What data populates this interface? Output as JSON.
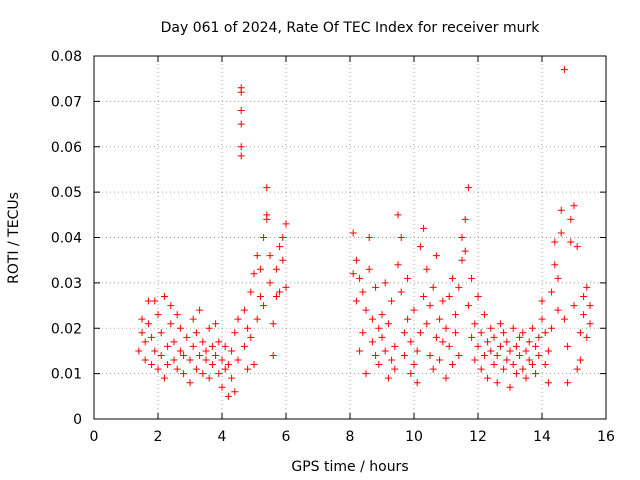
{
  "chart_data": {
    "type": "scatter",
    "title": "Day 061 of 2024, Rate Of TEC Index for receiver murk",
    "xlabel": "GPS time / hours",
    "ylabel": "ROTI / TECUs",
    "xlim": [
      0,
      16
    ],
    "ylim": [
      0,
      0.08
    ],
    "xticks": [
      0,
      2,
      4,
      6,
      8,
      10,
      12,
      14,
      16
    ],
    "yticks": [
      0,
      0.01,
      0.02,
      0.03,
      0.04,
      0.05,
      0.06,
      0.07,
      0.08
    ],
    "xtick_labels": [
      "0",
      "2",
      "4",
      "6",
      "8",
      "10",
      "12",
      "14",
      "16"
    ],
    "ytick_labels": [
      "0",
      "0.01",
      "0.02",
      "0.03",
      "0.04",
      "0.05",
      "0.06",
      "0.07",
      "0.08"
    ],
    "grid": true,
    "marker": "plus",
    "series_color": "#ff0000",
    "series": [
      {
        "name": "ROTI",
        "points": [
          [
            1.4,
            0.015
          ],
          [
            1.5,
            0.019
          ],
          [
            1.5,
            0.022
          ],
          [
            1.6,
            0.013
          ],
          [
            1.6,
            0.017
          ],
          [
            1.7,
            0.026
          ],
          [
            1.7,
            0.021
          ],
          [
            1.8,
            0.012
          ],
          [
            1.8,
            0.018
          ],
          [
            1.9,
            0.026
          ],
          [
            1.9,
            0.015
          ],
          [
            2.0,
            0.011
          ],
          [
            2.0,
            0.023
          ],
          [
            2.1,
            0.014
          ],
          [
            2.1,
            0.019
          ],
          [
            2.2,
            0.009
          ],
          [
            2.2,
            0.027
          ],
          [
            2.3,
            0.016
          ],
          [
            2.3,
            0.012
          ],
          [
            2.4,
            0.021
          ],
          [
            2.4,
            0.025
          ],
          [
            2.5,
            0.013
          ],
          [
            2.5,
            0.017
          ],
          [
            2.6,
            0.011
          ],
          [
            2.6,
            0.023
          ],
          [
            2.7,
            0.015
          ],
          [
            2.7,
            0.02
          ],
          [
            2.8,
            0.014
          ],
          [
            2.8,
            0.01
          ],
          [
            2.9,
            0.018
          ],
          [
            3.0,
            0.008
          ],
          [
            3.0,
            0.013
          ],
          [
            3.1,
            0.022
          ],
          [
            3.1,
            0.016
          ],
          [
            3.2,
            0.011
          ],
          [
            3.2,
            0.019
          ],
          [
            3.3,
            0.014
          ],
          [
            3.3,
            0.024
          ],
          [
            3.4,
            0.01
          ],
          [
            3.4,
            0.017
          ],
          [
            3.5,
            0.013
          ],
          [
            3.5,
            0.015
          ],
          [
            3.6,
            0.009
          ],
          [
            3.6,
            0.02
          ],
          [
            3.7,
            0.016
          ],
          [
            3.7,
            0.012
          ],
          [
            3.8,
            0.014
          ],
          [
            3.8,
            0.021
          ],
          [
            3.9,
            0.01
          ],
          [
            3.9,
            0.017
          ],
          [
            4.0,
            0.007
          ],
          [
            4.0,
            0.013
          ],
          [
            4.1,
            0.011
          ],
          [
            4.1,
            0.016
          ],
          [
            4.2,
            0.005
          ],
          [
            4.2,
            0.012
          ],
          [
            4.3,
            0.009
          ],
          [
            4.3,
            0.015
          ],
          [
            4.4,
            0.006
          ],
          [
            4.4,
            0.019
          ],
          [
            4.5,
            0.013
          ],
          [
            4.5,
            0.022
          ],
          [
            4.6,
            0.073
          ],
          [
            4.6,
            0.072
          ],
          [
            4.6,
            0.068
          ],
          [
            4.6,
            0.065
          ],
          [
            4.6,
            0.06
          ],
          [
            4.6,
            0.058
          ],
          [
            4.7,
            0.016
          ],
          [
            4.7,
            0.024
          ],
          [
            4.8,
            0.011
          ],
          [
            4.8,
            0.02
          ],
          [
            4.9,
            0.018
          ],
          [
            4.9,
            0.028
          ],
          [
            5.0,
            0.012
          ],
          [
            5.0,
            0.032
          ],
          [
            5.1,
            0.022
          ],
          [
            5.1,
            0.036
          ],
          [
            5.2,
            0.027
          ],
          [
            5.2,
            0.033
          ],
          [
            5.3,
            0.025
          ],
          [
            5.3,
            0.04
          ],
          [
            5.4,
            0.044
          ],
          [
            5.4,
            0.045
          ],
          [
            5.4,
            0.051
          ],
          [
            5.5,
            0.03
          ],
          [
            5.5,
            0.036
          ],
          [
            5.6,
            0.014
          ],
          [
            5.6,
            0.021
          ],
          [
            5.7,
            0.027
          ],
          [
            5.7,
            0.033
          ],
          [
            5.8,
            0.028
          ],
          [
            5.8,
            0.038
          ],
          [
            5.9,
            0.035
          ],
          [
            5.9,
            0.04
          ],
          [
            6.0,
            0.043
          ],
          [
            6.0,
            0.029
          ],
          [
            8.1,
            0.041
          ],
          [
            8.1,
            0.032
          ],
          [
            8.2,
            0.035
          ],
          [
            8.2,
            0.026
          ],
          [
            8.3,
            0.031
          ],
          [
            8.3,
            0.015
          ],
          [
            8.4,
            0.019
          ],
          [
            8.4,
            0.028
          ],
          [
            8.5,
            0.01
          ],
          [
            8.5,
            0.024
          ],
          [
            8.6,
            0.04
          ],
          [
            8.6,
            0.033
          ],
          [
            8.7,
            0.017
          ],
          [
            8.7,
            0.022
          ],
          [
            8.8,
            0.014
          ],
          [
            8.8,
            0.029
          ],
          [
            8.9,
            0.02
          ],
          [
            8.9,
            0.012
          ],
          [
            9.0,
            0.018
          ],
          [
            9.0,
            0.023
          ],
          [
            9.1,
            0.03
          ],
          [
            9.1,
            0.015
          ],
          [
            9.2,
            0.009
          ],
          [
            9.2,
            0.021
          ],
          [
            9.3,
            0.013
          ],
          [
            9.3,
            0.026
          ],
          [
            9.4,
            0.016
          ],
          [
            9.4,
            0.011
          ],
          [
            9.5,
            0.034
          ],
          [
            9.5,
            0.045
          ],
          [
            9.6,
            0.04
          ],
          [
            9.6,
            0.028
          ],
          [
            9.7,
            0.019
          ],
          [
            9.7,
            0.014
          ],
          [
            9.8,
            0.022
          ],
          [
            9.8,
            0.031
          ],
          [
            9.9,
            0.01
          ],
          [
            9.9,
            0.017
          ],
          [
            10.0,
            0.012
          ],
          [
            10.0,
            0.024
          ],
          [
            10.1,
            0.015
          ],
          [
            10.1,
            0.008
          ],
          [
            10.2,
            0.019
          ],
          [
            10.2,
            0.038
          ],
          [
            10.3,
            0.042
          ],
          [
            10.3,
            0.027
          ],
          [
            10.4,
            0.021
          ],
          [
            10.4,
            0.033
          ],
          [
            10.5,
            0.014
          ],
          [
            10.5,
            0.025
          ],
          [
            10.6,
            0.011
          ],
          [
            10.6,
            0.029
          ],
          [
            10.7,
            0.018
          ],
          [
            10.7,
            0.036
          ],
          [
            10.8,
            0.013
          ],
          [
            10.8,
            0.022
          ],
          [
            10.9,
            0.026
          ],
          [
            10.9,
            0.017
          ],
          [
            11.0,
            0.009
          ],
          [
            11.0,
            0.02
          ],
          [
            11.1,
            0.016
          ],
          [
            11.1,
            0.027
          ],
          [
            11.2,
            0.012
          ],
          [
            11.2,
            0.031
          ],
          [
            11.3,
            0.019
          ],
          [
            11.3,
            0.023
          ],
          [
            11.4,
            0.014
          ],
          [
            11.4,
            0.029
          ],
          [
            11.5,
            0.035
          ],
          [
            11.5,
            0.04
          ],
          [
            11.6,
            0.044
          ],
          [
            11.6,
            0.037
          ],
          [
            11.7,
            0.051
          ],
          [
            11.7,
            0.025
          ],
          [
            11.8,
            0.018
          ],
          [
            11.8,
            0.031
          ],
          [
            11.9,
            0.021
          ],
          [
            11.9,
            0.013
          ],
          [
            12.0,
            0.016
          ],
          [
            12.0,
            0.027
          ],
          [
            12.1,
            0.011
          ],
          [
            12.1,
            0.019
          ],
          [
            12.2,
            0.014
          ],
          [
            12.2,
            0.023
          ],
          [
            12.3,
            0.009
          ],
          [
            12.3,
            0.017
          ],
          [
            12.4,
            0.015
          ],
          [
            12.4,
            0.02
          ],
          [
            12.5,
            0.012
          ],
          [
            12.5,
            0.018
          ],
          [
            12.6,
            0.008
          ],
          [
            12.6,
            0.014
          ],
          [
            12.7,
            0.016
          ],
          [
            12.7,
            0.021
          ],
          [
            12.8,
            0.011
          ],
          [
            12.8,
            0.019
          ],
          [
            12.9,
            0.013
          ],
          [
            12.9,
            0.017
          ],
          [
            13.0,
            0.007
          ],
          [
            13.0,
            0.015
          ],
          [
            13.1,
            0.012
          ],
          [
            13.1,
            0.02
          ],
          [
            13.2,
            0.016
          ],
          [
            13.2,
            0.01
          ],
          [
            13.3,
            0.018
          ],
          [
            13.3,
            0.014
          ],
          [
            13.4,
            0.011
          ],
          [
            13.4,
            0.019
          ],
          [
            13.5,
            0.015
          ],
          [
            13.5,
            0.009
          ],
          [
            13.6,
            0.017
          ],
          [
            13.6,
            0.013
          ],
          [
            13.7,
            0.02
          ],
          [
            13.7,
            0.012
          ],
          [
            13.8,
            0.016
          ],
          [
            13.8,
            0.01
          ],
          [
            13.9,
            0.014
          ],
          [
            13.9,
            0.018
          ],
          [
            14.0,
            0.022
          ],
          [
            14.0,
            0.026
          ],
          [
            14.1,
            0.019
          ],
          [
            14.1,
            0.012
          ],
          [
            14.2,
            0.008
          ],
          [
            14.2,
            0.015
          ],
          [
            14.3,
            0.028
          ],
          [
            14.3,
            0.02
          ],
          [
            14.4,
            0.034
          ],
          [
            14.4,
            0.039
          ],
          [
            14.5,
            0.031
          ],
          [
            14.5,
            0.024
          ],
          [
            14.6,
            0.046
          ],
          [
            14.6,
            0.041
          ],
          [
            14.7,
            0.077
          ],
          [
            14.7,
            0.022
          ],
          [
            14.8,
            0.008
          ],
          [
            14.8,
            0.016
          ],
          [
            14.9,
            0.039
          ],
          [
            14.9,
            0.044
          ],
          [
            15.0,
            0.047
          ],
          [
            15.0,
            0.025
          ],
          [
            15.1,
            0.038
          ],
          [
            15.1,
            0.011
          ],
          [
            15.2,
            0.013
          ],
          [
            15.2,
            0.019
          ],
          [
            15.3,
            0.023
          ],
          [
            15.3,
            0.027
          ],
          [
            15.4,
            0.018
          ],
          [
            15.4,
            0.029
          ],
          [
            15.5,
            0.021
          ],
          [
            15.5,
            0.025
          ]
        ]
      }
    ]
  }
}
